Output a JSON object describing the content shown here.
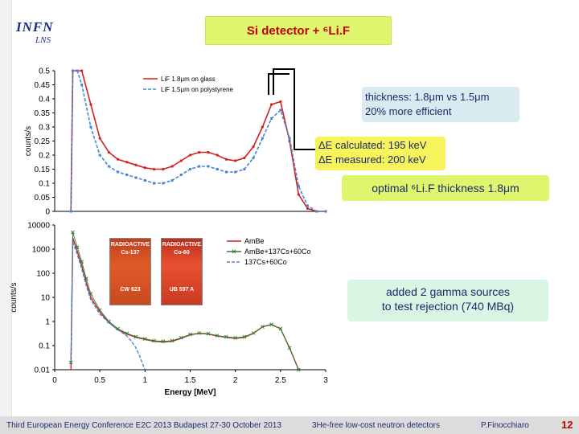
{
  "slide": {
    "title": "Si detector + ⁶Li.F",
    "logo_main": "INFN",
    "logo_sub": "LNS",
    "notes": {
      "thickness_1": "thickness: 1.8μm vs 1.5μm",
      "thickness_2": "20% more efficient",
      "delta_e_1": "ΔE calculated: 195 keV",
      "delta_e_2": "ΔE measured: 200 keV",
      "optimal": "optimal ⁶Li.F thickness 1.8μm",
      "gamma_1": "added 2 gamma sources",
      "gamma_2": "to test rejection (740 MBq)"
    },
    "photos": [
      {
        "top": "RADIOACTIVE",
        "iso": "Cs-137",
        "code": "CW 623"
      },
      {
        "top": "RADIOACTIVE",
        "iso": "Co-60",
        "code": "UB 597 A"
      }
    ],
    "footer": {
      "conference": "Third European Energy Conference  E2C 2013  Budapest 27-30 October 2013",
      "topic": "3He-free low-cost neutron detectors",
      "author": "P.Finocchiaro",
      "page": "12"
    },
    "colors": {
      "red": "#d42020",
      "blue": "#4a86d0",
      "green": "#2e7d32",
      "title_bg": "#dff56e"
    }
  },
  "chart_data": [
    {
      "type": "line",
      "ylabel": "counts/s",
      "xlabel": "",
      "xlim": [
        0,
        3
      ],
      "ylim": [
        0,
        0.5
      ],
      "yticks": [
        "0",
        "0.05",
        "0.1",
        "0.15",
        "0.2",
        "0.25",
        "0.3",
        "0.35",
        "0.4",
        "0.45",
        "0.5"
      ],
      "legend_position": "top-center",
      "series": [
        {
          "name": "LiF 1.8μm on glass",
          "color": "#d42020",
          "x": [
            0.18,
            0.2,
            0.25,
            0.3,
            0.4,
            0.5,
            0.6,
            0.7,
            0.8,
            0.9,
            1.0,
            1.1,
            1.2,
            1.3,
            1.4,
            1.5,
            1.6,
            1.7,
            1.8,
            1.9,
            2.0,
            2.1,
            2.2,
            2.3,
            2.4,
            2.5,
            2.6,
            2.7,
            2.8,
            2.9,
            3.0
          ],
          "values": [
            0.0,
            0.5,
            0.5,
            0.5,
            0.38,
            0.26,
            0.21,
            0.185,
            0.175,
            0.165,
            0.155,
            0.15,
            0.15,
            0.16,
            0.18,
            0.2,
            0.21,
            0.21,
            0.2,
            0.185,
            0.18,
            0.19,
            0.23,
            0.3,
            0.38,
            0.39,
            0.25,
            0.06,
            0.01,
            0.0,
            0.0
          ]
        },
        {
          "name": "LiF 1.5μm on polystyrene",
          "color": "#4a86d0",
          "x": [
            0.18,
            0.2,
            0.25,
            0.3,
            0.4,
            0.5,
            0.6,
            0.7,
            0.8,
            0.9,
            1.0,
            1.1,
            1.2,
            1.3,
            1.4,
            1.5,
            1.6,
            1.7,
            1.8,
            1.9,
            2.0,
            2.1,
            2.2,
            2.3,
            2.4,
            2.5,
            2.6,
            2.7,
            2.8,
            2.9,
            3.0
          ],
          "values": [
            0.0,
            0.5,
            0.5,
            0.45,
            0.3,
            0.2,
            0.16,
            0.14,
            0.13,
            0.12,
            0.11,
            0.1,
            0.1,
            0.11,
            0.13,
            0.15,
            0.16,
            0.16,
            0.15,
            0.14,
            0.14,
            0.15,
            0.19,
            0.26,
            0.33,
            0.36,
            0.26,
            0.09,
            0.02,
            0.0,
            0.0
          ]
        }
      ]
    },
    {
      "type": "line",
      "ylabel": "counts/s",
      "xlabel": "Energy [MeV]",
      "xlim": [
        0,
        3
      ],
      "ylim": [
        0.01,
        10000
      ],
      "yscale": "log",
      "xticks": [
        "0",
        "0.5",
        "1",
        "1.5",
        "2",
        "2.5",
        "3"
      ],
      "yticks": [
        "0.01",
        "0.1",
        "1",
        "10",
        "100",
        "1000",
        "10000"
      ],
      "legend_position": "top-right",
      "series": [
        {
          "name": "AmBe",
          "color": "#d42020",
          "x": [
            0.18,
            0.2,
            0.25,
            0.3,
            0.35,
            0.4,
            0.5,
            0.6,
            0.7,
            0.8,
            0.9,
            1.0,
            1.1,
            1.2,
            1.3,
            1.4,
            1.5,
            1.6,
            1.7,
            1.8,
            1.9,
            2.0,
            2.1,
            2.2,
            2.3,
            2.4,
            2.5,
            2.6,
            2.7
          ],
          "values": [
            0.01,
            3000,
            800,
            200,
            40,
            10,
            2.5,
            0.9,
            0.45,
            0.3,
            0.22,
            0.18,
            0.15,
            0.14,
            0.15,
            0.2,
            0.28,
            0.32,
            0.3,
            0.25,
            0.22,
            0.2,
            0.22,
            0.32,
            0.6,
            0.75,
            0.5,
            0.08,
            0.01
          ]
        },
        {
          "name": "AmBe+137Cs+60Co",
          "color": "#2e7d32",
          "x": [
            0.18,
            0.2,
            0.25,
            0.3,
            0.35,
            0.4,
            0.5,
            0.6,
            0.7,
            0.8,
            0.9,
            1.0,
            1.1,
            1.2,
            1.3,
            1.4,
            1.5,
            1.6,
            1.7,
            1.8,
            1.9,
            2.0,
            2.1,
            2.2,
            2.3,
            2.4,
            2.5,
            2.6,
            2.7
          ],
          "values": [
            0.02,
            5000,
            1200,
            300,
            60,
            14,
            3,
            1.0,
            0.5,
            0.32,
            0.23,
            0.19,
            0.16,
            0.15,
            0.16,
            0.21,
            0.29,
            0.33,
            0.31,
            0.26,
            0.23,
            0.21,
            0.23,
            0.33,
            0.6,
            0.75,
            0.5,
            0.08,
            0.01
          ]
        },
        {
          "name": "137Cs+60Co",
          "color": "#4a86d0",
          "x": [
            0.18,
            0.2,
            0.25,
            0.3,
            0.35,
            0.4,
            0.5,
            0.6,
            0.7,
            0.8,
            0.85,
            0.9,
            0.95,
            1.0
          ],
          "values": [
            0.02,
            2000,
            600,
            150,
            30,
            8,
            2,
            0.9,
            0.45,
            0.25,
            0.15,
            0.08,
            0.03,
            0.01
          ]
        }
      ]
    }
  ]
}
